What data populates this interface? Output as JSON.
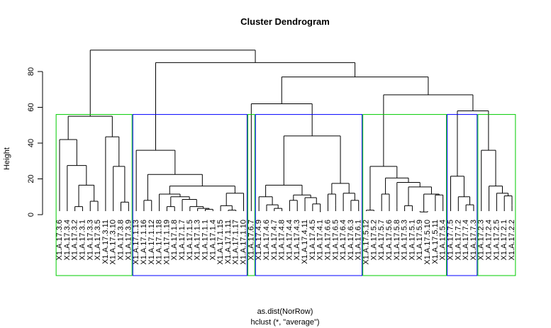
{
  "chart_data": {
    "type": "dendrogram",
    "title": "Cluster Dendrogram",
    "xlabel": "as.dist(NorRow)",
    "sub": "hclust (*, \"average\")",
    "ylabel": "Height",
    "ylim": [
      0,
      90
    ],
    "yticks": [
      0,
      20,
      40,
      60,
      80
    ],
    "root_height": 92,
    "leaves": [
      "X1.A.17.3.6",
      "X1.A.17.3.4",
      "X1.A.17.3.2",
      "X1.A.17.3.1",
      "X1.A.17.3.3",
      "X1.A.17.3.5",
      "X1.A.17.3.11",
      "X1.A.17.3.10",
      "X1.A.17.3.8",
      "X1.A.17.3.9",
      "X1.A.17.1.13",
      "X1.A.17.1.16",
      "X1.A.17.1.12",
      "X1.A.17.1.18",
      "X1.A.17.1.19",
      "X1.A.17.1.8",
      "X1.A.17.1.7",
      "X1.A.17.1.5",
      "X1.A.17.1.3",
      "X1.A.17.1.1",
      "X1.A.17.1.4",
      "X1.A.17.1.15",
      "X1.A.17.1.11",
      "X1.A.17.1.17",
      "X1.A.17.1.10",
      "X1.A.17.6.7",
      "X1.A.17.4.9",
      "X1.A.17.4.6",
      "X1.A.17.4.7",
      "X1.A.17.4.8",
      "X1.A.17.4.4",
      "X1.A.17.4.3",
      "X1.A.17.4.11",
      "X1.A.17.4.5",
      "X1.A.17.4.1",
      "X1.A.17.6.6",
      "X1.A.17.6.5",
      "X1.A.17.6.4",
      "X1.A.17.6.3",
      "X1.A.17.6.1",
      "X1.A.17.5.12",
      "X1.A.17.5.2",
      "X1.A.17.5.7",
      "X1.A.17.5.6",
      "X1.A.17.5.8",
      "X1.A.17.5.3",
      "X1.A.17.5.1",
      "X1.A.17.5.9",
      "X1.A.17.5.10",
      "X1.A.17.5.11",
      "X1.A.17.5.4",
      "X1.A.17.7.5",
      "X1.A.17.7.2",
      "X1.A.17.7.4",
      "X1.A.17.7.3",
      "X1.A.17.2.3",
      "X1.A.17.2.4",
      "X1.A.17.2.5",
      "X1.A.17.2.1",
      "X1.A.17.2.2"
    ],
    "merges": [
      [
        0,
        6,
        4.5
      ],
      [
        -1,
        0,
        28
      ],
      [
        -2,
        -3,
        17
      ],
      [
        52,
        1,
        24
      ]
    ],
    "tree": {
      "h": 92,
      "c": [
        {
          "h": 55,
          "c": [
            {
              "h": 42,
              "c": [
                0,
                {
                  "h": 27.5,
                  "c": [
                    1,
                    {
                      "h": 16.5,
                      "c": [
                        {
                          "h": 4.5,
                          "c": [
                            2,
                            3
                          ]
                        },
                        {
                          "h": 7.5,
                          "c": [
                            4,
                            5
                          ]
                        }
                      ]
                    }
                  ]
                }
              ]
            },
            {
              "h": 43.5,
              "c": [
                6,
                {
                  "h": 27,
                  "c": [
                    7,
                    {
                      "h": 7,
                      "c": [
                        8,
                        9
                      ]
                    }
                  ]
                }
              ]
            }
          ]
        },
        {
          "h": 85,
          "c": [
            {
              "h": 36,
              "c": [
                10,
                {
                  "h": 22.5,
                  "c": [
                    {
                      "h": 8,
                      "c": [
                        11,
                        12
                      ]
                    },
                    {
                      "h": 16,
                      "c": [
                        {
                          "h": 11.5,
                          "c": [
                            13,
                            {
                              "h": 10,
                              "c": [
                                {
                                  "h": 4.5,
                                  "c": [
                                    14,
                                    15
                                  ]
                                },
                                {
                                  "h": 8.5,
                                  "c": [
                                    16,
                                    {
                                      "h": 4.5,
                                      "c": [
                                        17,
                                        {
                                          "h": 3.5,
                                          "c": [
                                            18,
                                            {
                                              "h": 3,
                                              "c": [
                                                19,
                                                20
                                              ]
                                            }
                                          ]
                                        }
                                      ]
                                    }
                                  ]
                                }
                              ]
                            }
                          ]
                        },
                        {
                          "h": 12,
                          "c": [
                            {
                              "h": 5,
                              "c": [
                                21,
                                {
                                  "h": 2.5,
                                  "c": [
                                    22,
                                    23
                                  ]
                                }
                              ]
                            },
                            {
                              "h": 9.5,
                              "c": [
                                24
                              ]
                            }
                          ]
                        }
                      ]
                    }
                  ]
                }
              ]
            },
            {
              "h": 77,
              "c": [
                {
                  "h": 62,
                  "c": [
                    25,
                    {
                      "h": 44,
                      "c": [
                        {
                          "h": 16.5,
                          "c": [
                            {
                              "h": 10,
                              "c": [
                                26,
                                {
                                  "h": 5.5,
                                  "c": [
                                    27,
                                    {
                                      "h": 3.5,
                                      "c": [
                                        28,
                                        29
                                      ]
                                    }
                                  ]
                                }
                              ]
                            },
                            {
                              "h": 11,
                              "c": [
                                {
                                  "h": 8,
                                  "c": [
                                    30,
                                    31
                                  ]
                                },
                                {
                                  "h": 9.5,
                                  "c": [
                                    32,
                                    {
                                      "h": 6,
                                      "c": [
                                        33,
                                        {
                                          "h": 1.5,
                                          "c": [
                                            34
                                          ]
                                        }
                                      ]
                                    }
                                  ]
                                }
                              ]
                            }
                          ]
                        },
                        {
                          "h": 17.5,
                          "c": [
                            {
                              "h": 11.5,
                              "c": [
                                35,
                                {
                                  "h": 5.5,
                                  "c": [
                                    36
                                  ]
                                }
                              ]
                            },
                            {
                              "h": 12,
                              "c": [
                                37,
                                {
                                  "h": 8,
                                  "c": [
                                    38,
                                    39
                                  ]
                                }
                              ]
                            }
                          ]
                        }
                      ]
                    }
                  ]
                },
                {
                  "h": 67,
                  "c": [
                    {
                      "h": 27,
                      "c": [
                        {
                          "h": 2.5,
                          "c": [
                            40,
                            41
                          ]
                        },
                        {
                          "h": 20.5,
                          "c": [
                            {
                              "h": 11.5,
                              "c": [
                                42,
                                43
                              ]
                            },
                            {
                              "h": 18,
                              "c": [
                                {
                                  "h": 4,
                                  "c": [
                                    44
                                  ]
                                },
                                {
                                  "h": 15.5,
                                  "c": [
                                    {
                                      "h": 5,
                                      "c": [
                                        45,
                                        46
                                      ]
                                    },
                                    {
                                      "h": 11.5,
                                      "c": [
                                        {
                                          "h": 1.5,
                                          "c": [
                                            47,
                                            48
                                          ]
                                        },
                                        {
                                          "h": 11,
                                          "c": [
                                            49,
                                            50
                                          ]
                                        }
                                      ]
                                    }
                                  ]
                                }
                              ]
                            }
                          ]
                        }
                      ]
                    },
                    {
                      "h": 58,
                      "c": [
                        {
                          "h": 21.5,
                          "c": [
                            51,
                            {
                              "h": 10,
                              "c": [
                                52,
                                {
                                  "h": 5.5,
                                  "c": [
                                    53,
                                    54
                                  ]
                                }
                              ]
                            }
                          ]
                        },
                        {
                          "h": 36,
                          "c": [
                            55,
                            {
                              "h": 16,
                              "c": [
                                56,
                                {
                                  "h": 12,
                                  "c": [
                                    57,
                                    {
                                      "h": 10.5,
                                      "c": [
                                        58,
                                        {
                                          "h": 5.5,
                                          "c": [
                                            59
                                          ]
                                        }
                                      ]
                                    }
                                  ]
                                }
                              ]
                            }
                          ]
                        }
                      ]
                    }
                  ]
                }
              ]
            }
          ]
        }
      ]
    },
    "cluster_boxes": [
      {
        "from": 0,
        "to": 9,
        "color": "#00cc00"
      },
      {
        "from": 10,
        "to": 24,
        "color": "#0000ff"
      },
      {
        "from": 25,
        "to": 25,
        "color": "#00cc00"
      },
      {
        "from": 26,
        "to": 39,
        "color": "#0000ff"
      },
      {
        "from": 40,
        "to": 50,
        "color": "#00cc00"
      },
      {
        "from": 51,
        "to": 54,
        "color": "#0000ff"
      },
      {
        "from": 55,
        "to": 59,
        "color": "#00cc00"
      }
    ],
    "box_height": 56
  }
}
